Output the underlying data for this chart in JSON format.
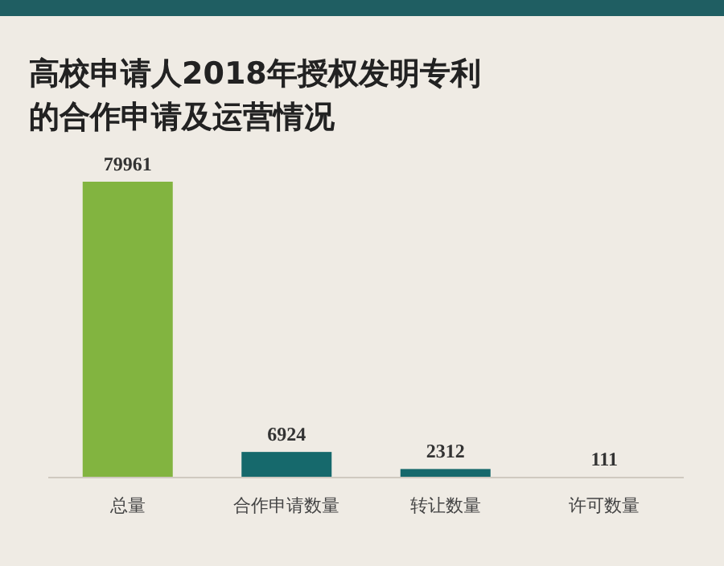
{
  "chart_data": {
    "type": "bar",
    "title": "高校申请人2018年授权发明专利的合作申请及运营情况",
    "categories": [
      "总量",
      "合作申请数量",
      "转让数量",
      "许可数量"
    ],
    "values": [
      79961,
      6924,
      2312,
      111
    ],
    "colors": [
      "#82b440",
      "#16696c",
      "#16696c",
      "#4f9a8c"
    ],
    "data_labels": true
  }
}
